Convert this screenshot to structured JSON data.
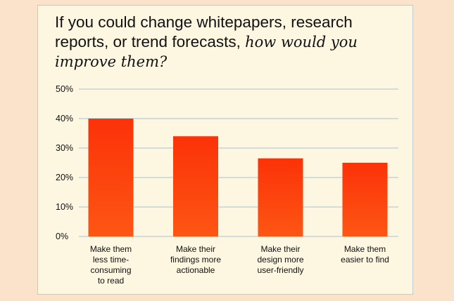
{
  "title": {
    "main": "If you could change whitepapers, research reports, or trend forecasts, ",
    "emphasis": "how would you improve them?"
  },
  "colors": {
    "page_background": "#fbe3cb",
    "card_background": "#fdf6e0",
    "bar_top": "#fc3208",
    "bar_bottom": "#fd5614",
    "gridline": "#a9c2d2",
    "text": "#111111"
  },
  "chart_data": {
    "type": "bar",
    "title": "If you could change whitepapers, research reports, or trend forecasts, how would you improve them?",
    "categories": [
      [
        "Make them",
        "less time-",
        "consuming",
        "to read"
      ],
      [
        "Make their",
        "findings more",
        "actionable"
      ],
      [
        "Make their",
        "design more",
        "user-friendly"
      ],
      [
        "Make them",
        "easier to find"
      ]
    ],
    "values": [
      40,
      34,
      26.5,
      25
    ],
    "ylim": [
      0,
      50
    ],
    "yticks": [
      0,
      10,
      20,
      30,
      40,
      50
    ],
    "ytick_labels": [
      "0%",
      "10%",
      "20%",
      "30%",
      "40%",
      "50%"
    ],
    "xlabel": "",
    "ylabel": "",
    "grid": true,
    "legend": "none"
  }
}
